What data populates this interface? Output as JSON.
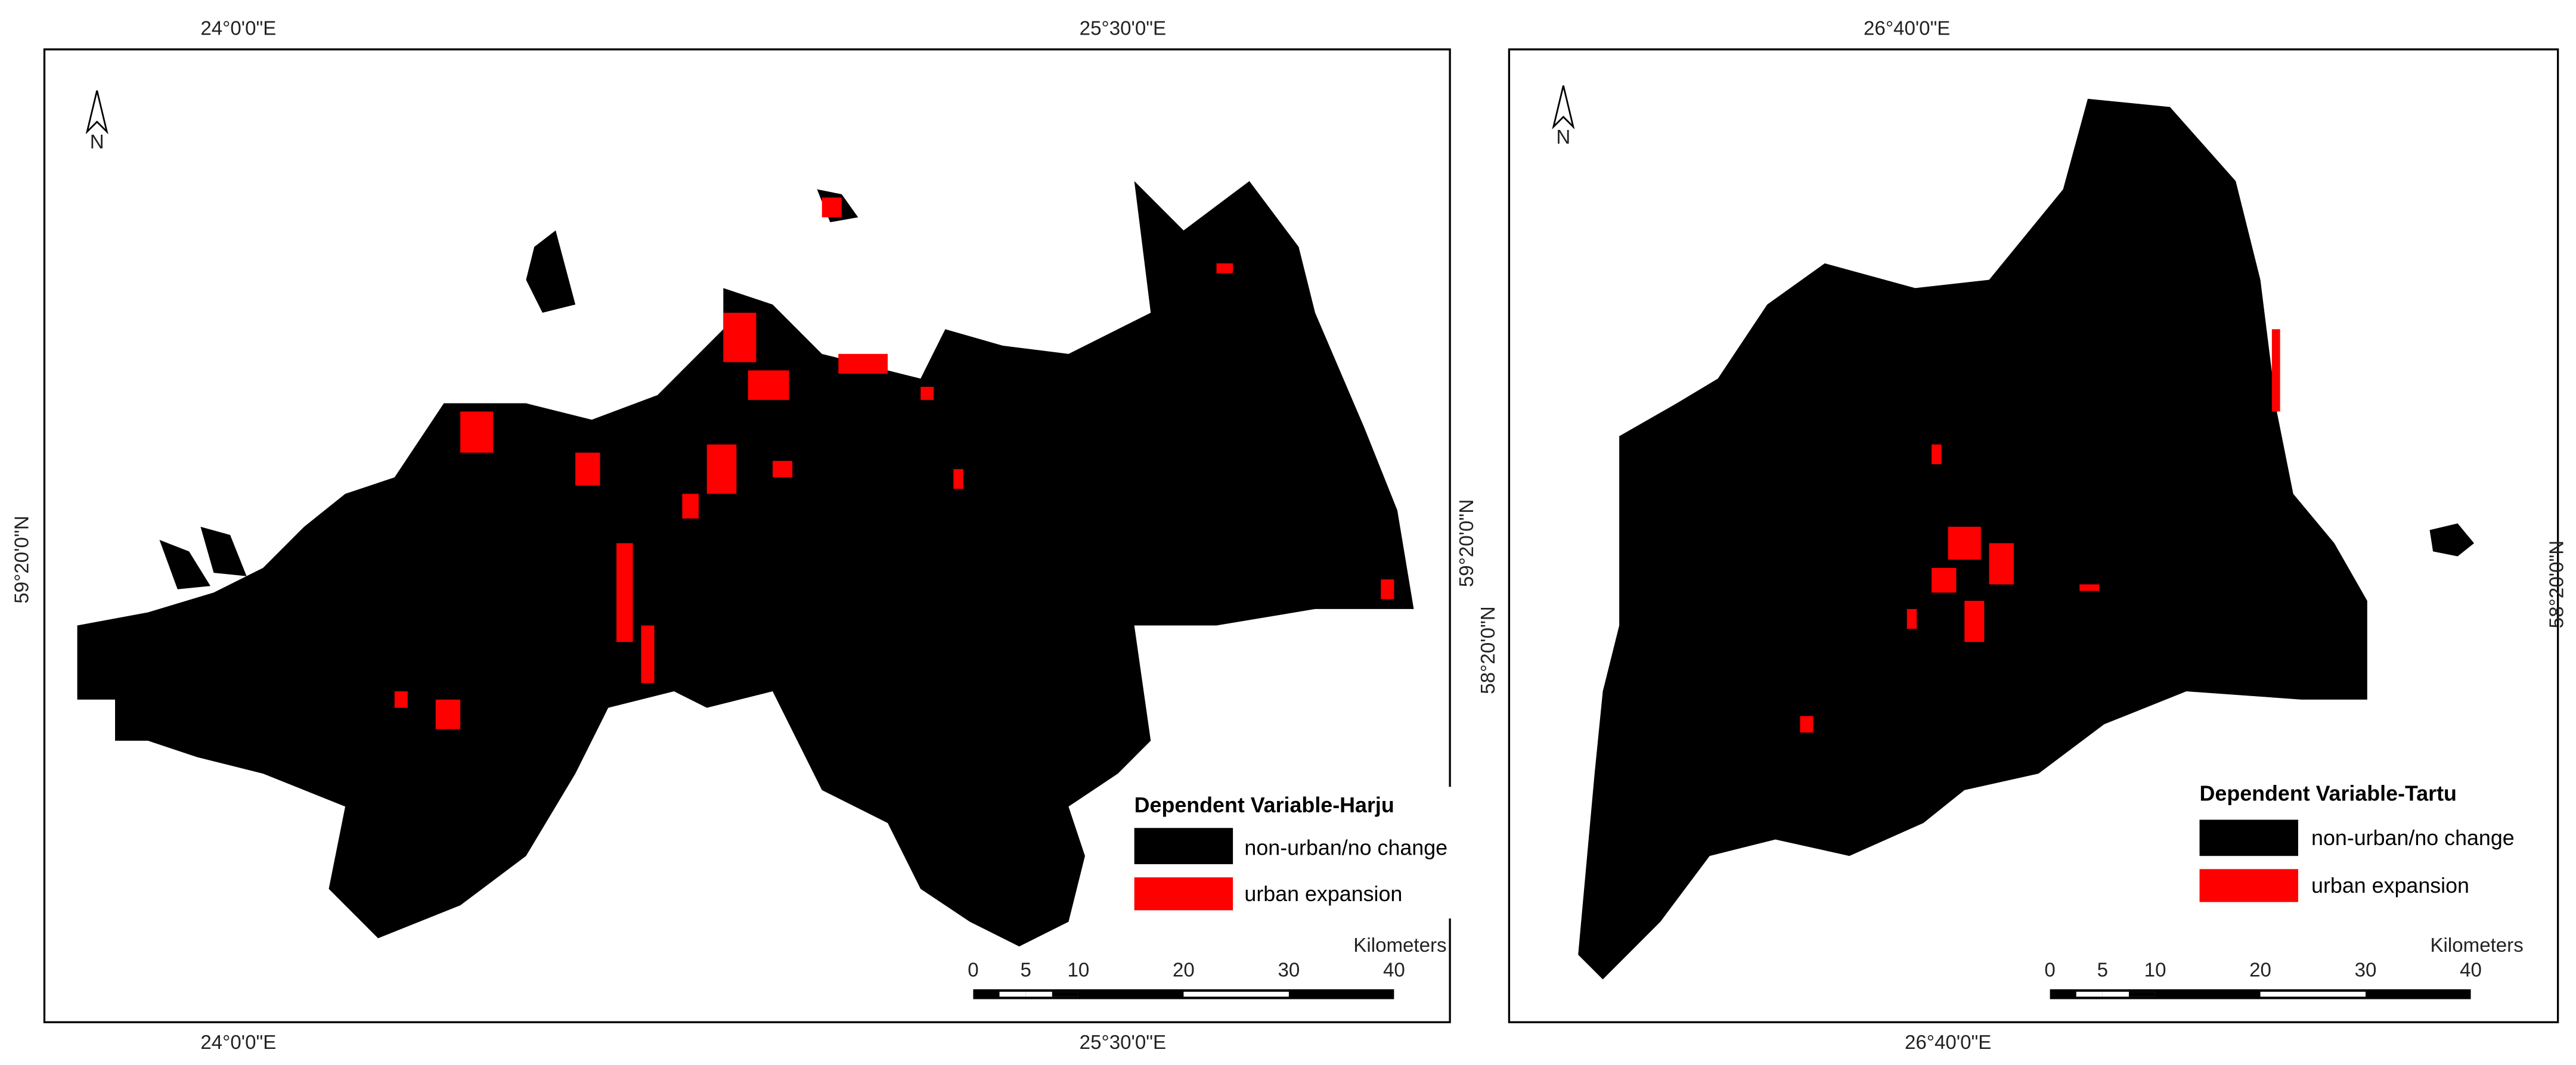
{
  "maps": [
    {
      "top_labels": [
        "24°0'0\"E",
        "25°30'0\"E"
      ],
      "bottom_labels": [
        "24°0'0\"E",
        "25°30'0\"E"
      ],
      "left_label": "59°20'0\"N",
      "right_label": "59°20'0\"N",
      "north": "N",
      "legend": {
        "title": "Dependent Variable-Harju",
        "items": [
          "non-urban/no change",
          "urban expansion"
        ]
      },
      "scale": {
        "unit": "Kilometers",
        "ticks": [
          0,
          5,
          10,
          20,
          30,
          40
        ]
      }
    },
    {
      "top_labels": [
        "26°40'0\"E"
      ],
      "bottom_labels": [
        "26°40'0\"E"
      ],
      "left_label": "58°20'0\"N",
      "right_label": "58°20'0\"N",
      "north": "N",
      "legend": {
        "title": "Dependent Variable-Tartu",
        "items": [
          "non-urban/no change",
          "urban expansion"
        ]
      },
      "scale": {
        "unit": "Kilometers",
        "ticks": [
          0,
          5,
          10,
          20,
          30,
          40
        ]
      }
    }
  ]
}
